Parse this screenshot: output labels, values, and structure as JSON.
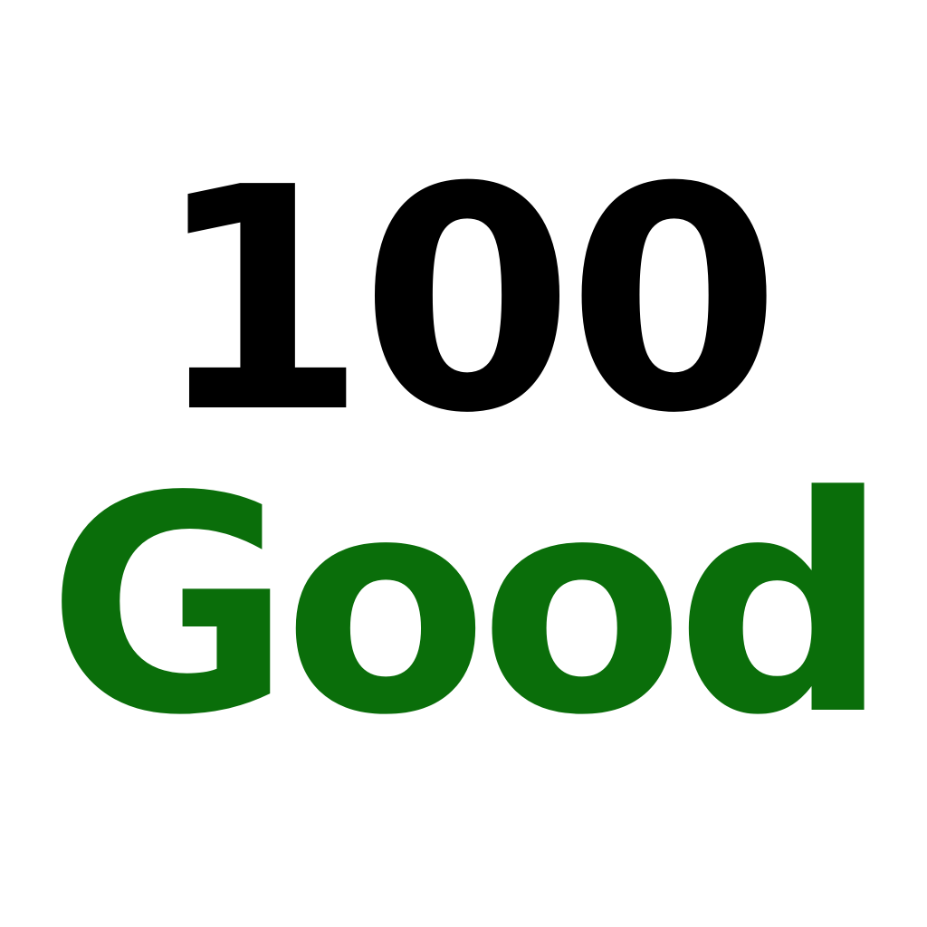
{
  "score": {
    "value": "100",
    "color": "#000000"
  },
  "rating": {
    "label": "Good",
    "color": "#0a6e0a"
  },
  "background": "#ffffff"
}
